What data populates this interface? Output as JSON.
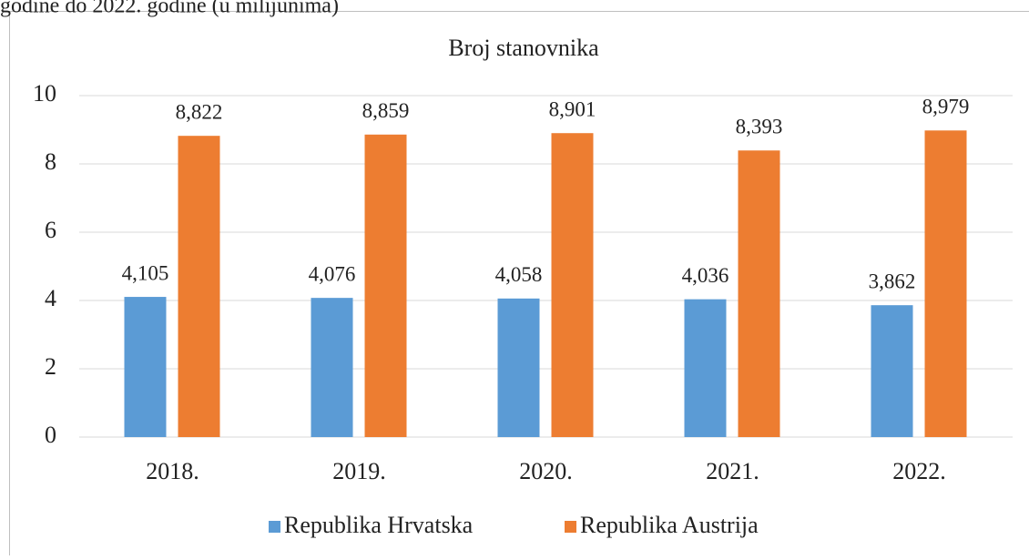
{
  "chart_data": {
    "type": "bar",
    "caption": "godine do 2022. godine (u milijunima)",
    "title": "Broj stanovnika",
    "categories": [
      "2018.",
      "2019.",
      "2020.",
      "2021.",
      "2022."
    ],
    "series": [
      {
        "name": "Republika Hrvatska",
        "color": "#5b9bd5",
        "values": [
          4.105,
          4.076,
          4.058,
          4.036,
          3.862
        ],
        "value_labels": [
          "4,105",
          "4,076",
          "4,058",
          "4,036",
          "3,862"
        ]
      },
      {
        "name": "Republika Austrija",
        "color": "#ed7d31",
        "values": [
          8.822,
          8.859,
          8.901,
          8.393,
          8.979
        ],
        "value_labels": [
          "8,822",
          "8,859",
          "8,901",
          "8,393",
          "8,979"
        ]
      }
    ],
    "ylim": [
      0,
      10
    ],
    "yticks": [
      0,
      2,
      4,
      6,
      8,
      10
    ],
    "grid": true,
    "legend": "bottom"
  }
}
